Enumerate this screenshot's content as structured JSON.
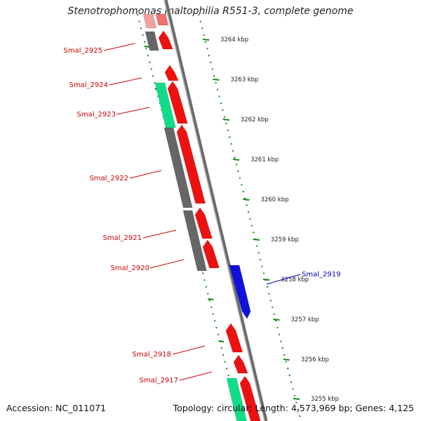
{
  "title": "Stenotrophomonas maltophilia R551-3, complete genome",
  "footer": {
    "accession_label": "Accession: NC_011071",
    "summary": "Topology: circular; Length: 4,573,969 bp; Genes: 4,125"
  },
  "colors": {
    "forward_cds": "#ee1111",
    "rna_gene": "#11dd88",
    "highlight_gene": "#1111dd",
    "other_feature": "#666666",
    "label_default": "#cc0000",
    "label_highlight": "#0000bb",
    "tick_green": "#118811"
  },
  "ruler_ticks": [
    {
      "label": "3264 kbp"
    },
    {
      "label": "3263 kbp"
    },
    {
      "label": "3262 kbp"
    },
    {
      "label": "3261 kbp"
    },
    {
      "label": "3260 kbp"
    },
    {
      "label": "3259 kbp"
    },
    {
      "label": "3258 kbp"
    },
    {
      "label": "3257 kbp"
    },
    {
      "label": "3256 kbp"
    },
    {
      "label": "3255 kbp"
    }
  ],
  "gene_labels": [
    {
      "name": "Smal_2925",
      "highlight": false
    },
    {
      "name": "Smal_2924",
      "highlight": false
    },
    {
      "name": "Smal_2923",
      "highlight": false
    },
    {
      "name": "Smal_2922",
      "highlight": false
    },
    {
      "name": "Smal_2921",
      "highlight": false
    },
    {
      "name": "Smal_2920",
      "highlight": false
    },
    {
      "name": "Smal_2919",
      "highlight": true
    },
    {
      "name": "Smal_2918",
      "highlight": false
    },
    {
      "name": "Smal_2917",
      "highlight": false
    }
  ]
}
